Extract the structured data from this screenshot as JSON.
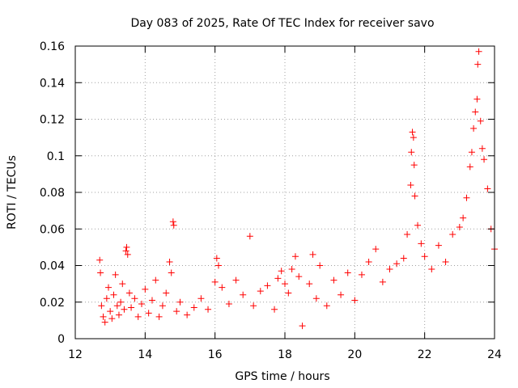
{
  "chart_data": {
    "type": "scatter",
    "title": "Day 083 of 2025, Rate Of TEC Index for receiver savo",
    "xlabel": "GPS time / hours",
    "ylabel": "ROTI / TECUs",
    "xlim": [
      12,
      24
    ],
    "ylim": [
      0,
      0.16
    ],
    "xticks": [
      12,
      14,
      16,
      18,
      20,
      22,
      24
    ],
    "yticks": [
      0,
      0.02,
      0.04,
      0.06,
      0.08,
      0.1,
      0.12,
      0.14,
      0.16
    ],
    "xtick_labels": [
      "12",
      "14",
      "16",
      "18",
      "20",
      "22",
      "24"
    ],
    "ytick_labels": [
      "0",
      "0.02",
      "0.04",
      "0.06",
      "0.08",
      "0.1",
      "0.12",
      "0.14",
      "0.16"
    ],
    "grid": true,
    "marker": "plus",
    "color": "#ff0000",
    "series": [
      {
        "name": "ROTI",
        "points": [
          [
            12.7,
            0.043
          ],
          [
            12.72,
            0.036
          ],
          [
            12.75,
            0.018
          ],
          [
            12.8,
            0.012
          ],
          [
            12.85,
            0.009
          ],
          [
            12.9,
            0.022
          ],
          [
            12.95,
            0.028
          ],
          [
            13.0,
            0.015
          ],
          [
            13.05,
            0.011
          ],
          [
            13.1,
            0.024
          ],
          [
            13.15,
            0.035
          ],
          [
            13.2,
            0.018
          ],
          [
            13.25,
            0.013
          ],
          [
            13.3,
            0.02
          ],
          [
            13.35,
            0.03
          ],
          [
            13.4,
            0.016
          ],
          [
            13.45,
            0.048
          ],
          [
            13.47,
            0.05
          ],
          [
            13.5,
            0.046
          ],
          [
            13.55,
            0.025
          ],
          [
            13.6,
            0.017
          ],
          [
            13.7,
            0.022
          ],
          [
            13.8,
            0.012
          ],
          [
            13.9,
            0.019
          ],
          [
            14.0,
            0.027
          ],
          [
            14.1,
            0.014
          ],
          [
            14.2,
            0.021
          ],
          [
            14.3,
            0.032
          ],
          [
            14.4,
            0.012
          ],
          [
            14.5,
            0.018
          ],
          [
            14.6,
            0.025
          ],
          [
            14.7,
            0.042
          ],
          [
            14.75,
            0.036
          ],
          [
            14.8,
            0.064
          ],
          [
            14.82,
            0.062
          ],
          [
            14.9,
            0.015
          ],
          [
            15.0,
            0.02
          ],
          [
            15.2,
            0.013
          ],
          [
            15.4,
            0.017
          ],
          [
            15.6,
            0.022
          ],
          [
            15.8,
            0.016
          ],
          [
            16.0,
            0.031
          ],
          [
            16.05,
            0.044
          ],
          [
            16.1,
            0.04
          ],
          [
            16.2,
            0.028
          ],
          [
            16.4,
            0.019
          ],
          [
            16.6,
            0.032
          ],
          [
            16.8,
            0.024
          ],
          [
            17.0,
            0.056
          ],
          [
            17.1,
            0.018
          ],
          [
            17.3,
            0.026
          ],
          [
            17.5,
            0.029
          ],
          [
            17.7,
            0.016
          ],
          [
            17.8,
            0.033
          ],
          [
            17.9,
            0.037
          ],
          [
            18.0,
            0.03
          ],
          [
            18.1,
            0.025
          ],
          [
            18.2,
            0.038
          ],
          [
            18.3,
            0.045
          ],
          [
            18.4,
            0.034
          ],
          [
            18.5,
            0.007
          ],
          [
            18.7,
            0.03
          ],
          [
            18.8,
            0.046
          ],
          [
            18.9,
            0.022
          ],
          [
            19.0,
            0.04
          ],
          [
            19.2,
            0.018
          ],
          [
            19.4,
            0.032
          ],
          [
            19.6,
            0.024
          ],
          [
            19.8,
            0.036
          ],
          [
            20.0,
            0.021
          ],
          [
            20.2,
            0.035
          ],
          [
            20.4,
            0.042
          ],
          [
            20.6,
            0.049
          ],
          [
            20.8,
            0.031
          ],
          [
            21.0,
            0.038
          ],
          [
            21.2,
            0.041
          ],
          [
            21.4,
            0.044
          ],
          [
            21.5,
            0.057
          ],
          [
            21.6,
            0.084
          ],
          [
            21.62,
            0.102
          ],
          [
            21.65,
            0.113
          ],
          [
            21.68,
            0.11
          ],
          [
            21.7,
            0.095
          ],
          [
            21.72,
            0.078
          ],
          [
            21.8,
            0.062
          ],
          [
            21.9,
            0.052
          ],
          [
            22.0,
            0.045
          ],
          [
            22.2,
            0.038
          ],
          [
            22.4,
            0.051
          ],
          [
            22.6,
            0.042
          ],
          [
            22.8,
            0.057
          ],
          [
            23.0,
            0.061
          ],
          [
            23.1,
            0.066
          ],
          [
            23.2,
            0.077
          ],
          [
            23.3,
            0.094
          ],
          [
            23.35,
            0.102
          ],
          [
            23.4,
            0.115
          ],
          [
            23.45,
            0.124
          ],
          [
            23.5,
            0.131
          ],
          [
            23.52,
            0.15
          ],
          [
            23.55,
            0.157
          ],
          [
            23.6,
            0.119
          ],
          [
            23.65,
            0.104
          ],
          [
            23.7,
            0.098
          ],
          [
            23.8,
            0.082
          ],
          [
            23.9,
            0.06
          ],
          [
            24.0,
            0.049
          ]
        ]
      }
    ]
  }
}
